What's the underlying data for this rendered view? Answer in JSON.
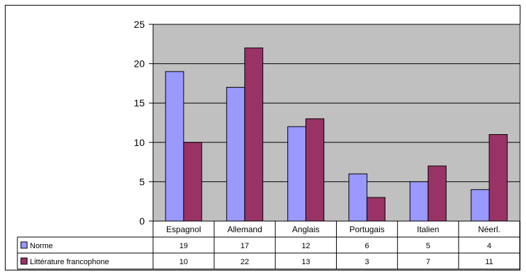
{
  "chart_data": {
    "type": "bar",
    "categories": [
      "Espagnol",
      "Allemand",
      "Anglais",
      "Portugais",
      "Italien",
      "Néerl."
    ],
    "series": [
      {
        "name": "Norme",
        "values": [
          19,
          17,
          12,
          6,
          5,
          4
        ],
        "color": "#9999ff"
      },
      {
        "name": "Littérature francophone",
        "values": [
          10,
          22,
          13,
          3,
          7,
          11
        ],
        "color": "#993366"
      }
    ],
    "ylim": [
      0,
      25
    ],
    "yticks": [
      0,
      5,
      10,
      15,
      20,
      25
    ],
    "grid": true,
    "plot_background": "#c0c0c0",
    "legend": "data-table-below"
  }
}
